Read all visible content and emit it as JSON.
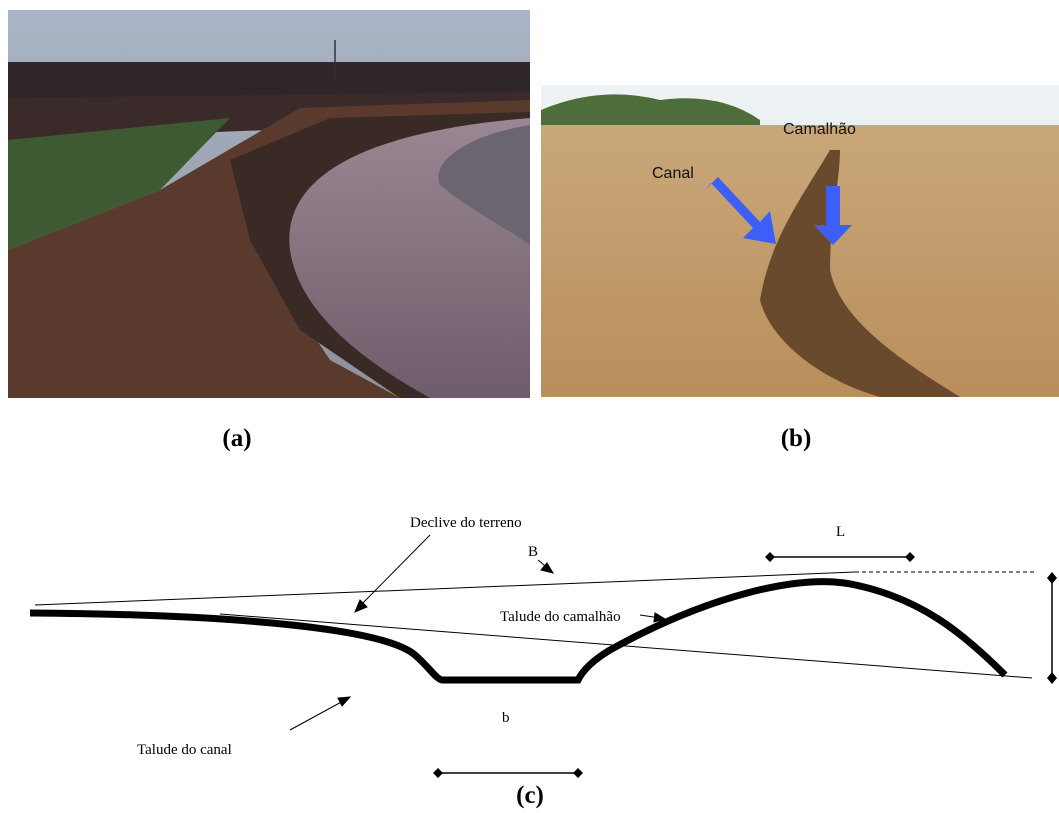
{
  "panels": [
    {
      "label": "(a)"
    },
    {
      "label": "(b)",
      "annotations": [
        "Canal",
        "Camalhão"
      ]
    },
    {
      "label": "(c)",
      "annotations": {
        "slope": "Declive do terreno",
        "B": "B",
        "ridge_slope": "Talude do camalhão",
        "channel_slope": "Talude do canal",
        "L": "L",
        "b": "b"
      }
    }
  ]
}
